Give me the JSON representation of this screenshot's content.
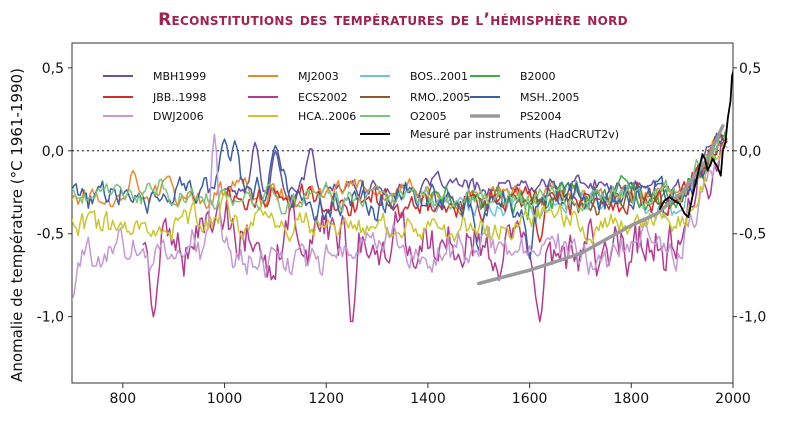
{
  "chart_data": {
    "type": "line",
    "title": "Reconstitutions des températures de l’hémisphère nord",
    "ylabel": "Anomalie de température (°C 1961-1990)",
    "xlabel": "",
    "xlim": [
      700,
      2000
    ],
    "ylim": [
      -1.4,
      0.65
    ],
    "x_ticks": [
      "800",
      "1000",
      "1200",
      "1400",
      "1600",
      "1800",
      "2000"
    ],
    "y_ticks_left": [
      "0,5",
      "0,0",
      "-0,5",
      "-1,0"
    ],
    "y_ticks_right": [
      "0,5",
      "0,0",
      "-0,5",
      "-1,0"
    ],
    "reference_line": 0.0,
    "legend_position": "top",
    "series": [
      {
        "name": "MBH1999",
        "color": "#6a4fa6",
        "start": 1000,
        "end": 1980,
        "mean": -0.22,
        "amp": 0.07,
        "trend": "flat-late-rise",
        "peaks": [
          [
            1060,
            0.05
          ],
          [
            1100,
            0.0
          ],
          [
            1170,
            0.02
          ]
        ]
      },
      {
        "name": "MJ2003",
        "color": "#e88a2a",
        "start": 700,
        "end": 1980,
        "mean": -0.26,
        "amp": 0.08,
        "trend": "flat-late-rise",
        "peaks": [
          [
            820,
            -0.12
          ],
          [
            890,
            -0.15
          ]
        ]
      },
      {
        "name": "BOS..2001",
        "color": "#6fc3e0",
        "start": 1400,
        "end": 1960,
        "mean": -0.32,
        "amp": 0.09,
        "trend": "late-rise",
        "peaks": []
      },
      {
        "name": "B2000",
        "color": "#3fa84a",
        "start": 1400,
        "end": 1990,
        "mean": -0.3,
        "amp": 0.1,
        "trend": "late-rise",
        "peaks": [
          [
            1780,
            -0.15
          ]
        ]
      },
      {
        "name": "JBB..1998",
        "color": "#d32a2a",
        "start": 1000,
        "end": 1990,
        "mean": -0.28,
        "amp": 0.11,
        "trend": "late-rise",
        "peaks": [
          [
            1620,
            -0.55
          ]
        ]
      },
      {
        "name": "ECS2002",
        "color": "#b53a93",
        "start": 840,
        "end": 1990,
        "mean": -0.55,
        "amp": 0.22,
        "trend": "deep-low",
        "peaks": [
          [
            860,
            -1.0
          ],
          [
            1250,
            -1.05
          ],
          [
            1620,
            -1.03
          ],
          [
            1980,
            0.05
          ]
        ]
      },
      {
        "name": "RMO..2005",
        "color": "#8b5a2b",
        "start": 1500,
        "end": 1980,
        "mean": -0.3,
        "amp": 0.08,
        "trend": "late-rise",
        "peaks": []
      },
      {
        "name": "MSH..2005",
        "color": "#3a5fa6",
        "start": 700,
        "end": 1980,
        "mean": -0.28,
        "amp": 0.12,
        "trend": "late-rise",
        "peaks": [
          [
            1000,
            0.07
          ],
          [
            1020,
            0.06
          ],
          [
            1100,
            0.03
          ],
          [
            1500,
            -0.6
          ],
          [
            1600,
            -0.65
          ]
        ]
      },
      {
        "name": "DWJ2006",
        "color": "#c39ad3",
        "start": 700,
        "end": 1990,
        "mean": -0.6,
        "amp": 0.14,
        "trend": "deep-low",
        "peaks": [
          [
            700,
            -0.9
          ],
          [
            980,
            0.1
          ]
        ]
      },
      {
        "name": "HCA..2006",
        "color": "#c9c72e",
        "start": 700,
        "end": 1990,
        "mean": -0.45,
        "amp": 0.1,
        "trend": "late-rise",
        "peaks": [
          [
            1000,
            -0.25
          ]
        ]
      },
      {
        "name": "O2005",
        "color": "#7cc47c",
        "start": 700,
        "end": 1980,
        "mean": -0.28,
        "amp": 0.09,
        "trend": "late-rise",
        "peaks": []
      },
      {
        "name": "PS2004",
        "color": "#9a9a9a",
        "start": 1500,
        "end": 1980,
        "width": 3.5,
        "points": [
          [
            1500,
            -0.8
          ],
          [
            1600,
            -0.72
          ],
          [
            1700,
            -0.62
          ],
          [
            1800,
            -0.45
          ],
          [
            1850,
            -0.38
          ],
          [
            1900,
            -0.25
          ],
          [
            1950,
            -0.05
          ],
          [
            1980,
            0.15
          ]
        ]
      },
      {
        "name": "Mesuré par instruments (HadCRUT2v)",
        "color": "#000000",
        "start": 1856,
        "end": 2004,
        "width": 1.8,
        "points": [
          [
            1856,
            -0.35
          ],
          [
            1865,
            -0.3
          ],
          [
            1875,
            -0.28
          ],
          [
            1885,
            -0.3
          ],
          [
            1895,
            -0.32
          ],
          [
            1905,
            -0.38
          ],
          [
            1912,
            -0.4
          ],
          [
            1920,
            -0.28
          ],
          [
            1930,
            -0.15
          ],
          [
            1940,
            -0.02
          ],
          [
            1945,
            -0.05
          ],
          [
            1950,
            -0.12
          ],
          [
            1960,
            -0.05
          ],
          [
            1970,
            -0.1
          ],
          [
            1976,
            -0.15
          ],
          [
            1980,
            0.0
          ],
          [
            1985,
            0.05
          ],
          [
            1990,
            0.2
          ],
          [
            1995,
            0.3
          ],
          [
            1998,
            0.45
          ],
          [
            2004,
            0.52
          ]
        ]
      }
    ]
  }
}
